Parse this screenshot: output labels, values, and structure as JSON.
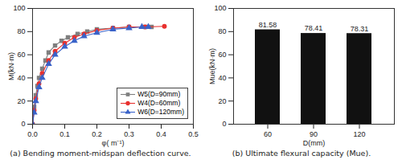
{
  "chart_data": [
    {
      "type": "line",
      "title": "(a) Bending moment-midspan deflection curve.",
      "x_label": "φ( m⁻¹)",
      "y_label": "M(kN·m)",
      "xlim": [
        0,
        0.5
      ],
      "xticks": [
        {
          "value": 0,
          "label": "0.0"
        },
        {
          "value": 0.1,
          "label": "0.1"
        },
        {
          "value": 0.2,
          "label": "0.2"
        },
        {
          "value": 0.3,
          "label": "0.3"
        },
        {
          "value": 0.4,
          "label": "0.4"
        },
        {
          "value": 0.5,
          "label": "0.5"
        }
      ],
      "ylim": [
        0,
        100
      ],
      "yticks": [
        0,
        20,
        40,
        60,
        80,
        100
      ],
      "legend": "lower-right",
      "series": [
        {
          "name": "W5(D=90mm)",
          "color": "#7f7f7f",
          "marker": "square",
          "line_style": "solid",
          "x": [
            0,
            0.005,
            0.01,
            0.015,
            0.02,
            0.03,
            0.04,
            0.05,
            0.07,
            0.09,
            0.11,
            0.14,
            0.17,
            0.2,
            0.25,
            0.3,
            0.35,
            0.37
          ],
          "values": [
            0,
            15,
            25,
            33,
            40,
            48,
            55,
            62,
            68,
            72,
            75,
            78,
            80,
            82,
            83,
            84,
            84,
            84
          ]
        },
        {
          "name": "W4(D=60mm)",
          "color": "#e8312f",
          "marker": "circle",
          "line_style": "solid",
          "x": [
            0,
            0.005,
            0.01,
            0.02,
            0.03,
            0.05,
            0.07,
            0.1,
            0.13,
            0.16,
            0.2,
            0.25,
            0.3,
            0.35,
            0.41
          ],
          "values": [
            0,
            12,
            22,
            35,
            44,
            55,
            63,
            70,
            75,
            78,
            81,
            83,
            84,
            84,
            84.5
          ]
        },
        {
          "name": "W6(D=120mm)",
          "color": "#3a63c9",
          "marker": "triangle",
          "line_style": "solid",
          "x": [
            0,
            0.005,
            0.01,
            0.02,
            0.03,
            0.05,
            0.07,
            0.1,
            0.13,
            0.16,
            0.2,
            0.25,
            0.3,
            0.34,
            0.36
          ],
          "values": [
            0,
            10,
            20,
            32,
            40,
            52,
            60,
            67,
            72,
            76,
            79,
            82,
            83,
            84,
            84
          ]
        }
      ]
    },
    {
      "type": "bar",
      "title": "(b) Ultimate flexural capacity (Mue).",
      "x_label": "D(mm)",
      "y_label": "Mue(kN·m)",
      "categories": [
        "60",
        "90",
        "120"
      ],
      "values": [
        81.58,
        78.41,
        78.31
      ],
      "color": "#111111",
      "ylim": [
        0,
        100
      ],
      "yticks": [
        0,
        20,
        40,
        60,
        80,
        100
      ],
      "data_labels": true
    }
  ]
}
